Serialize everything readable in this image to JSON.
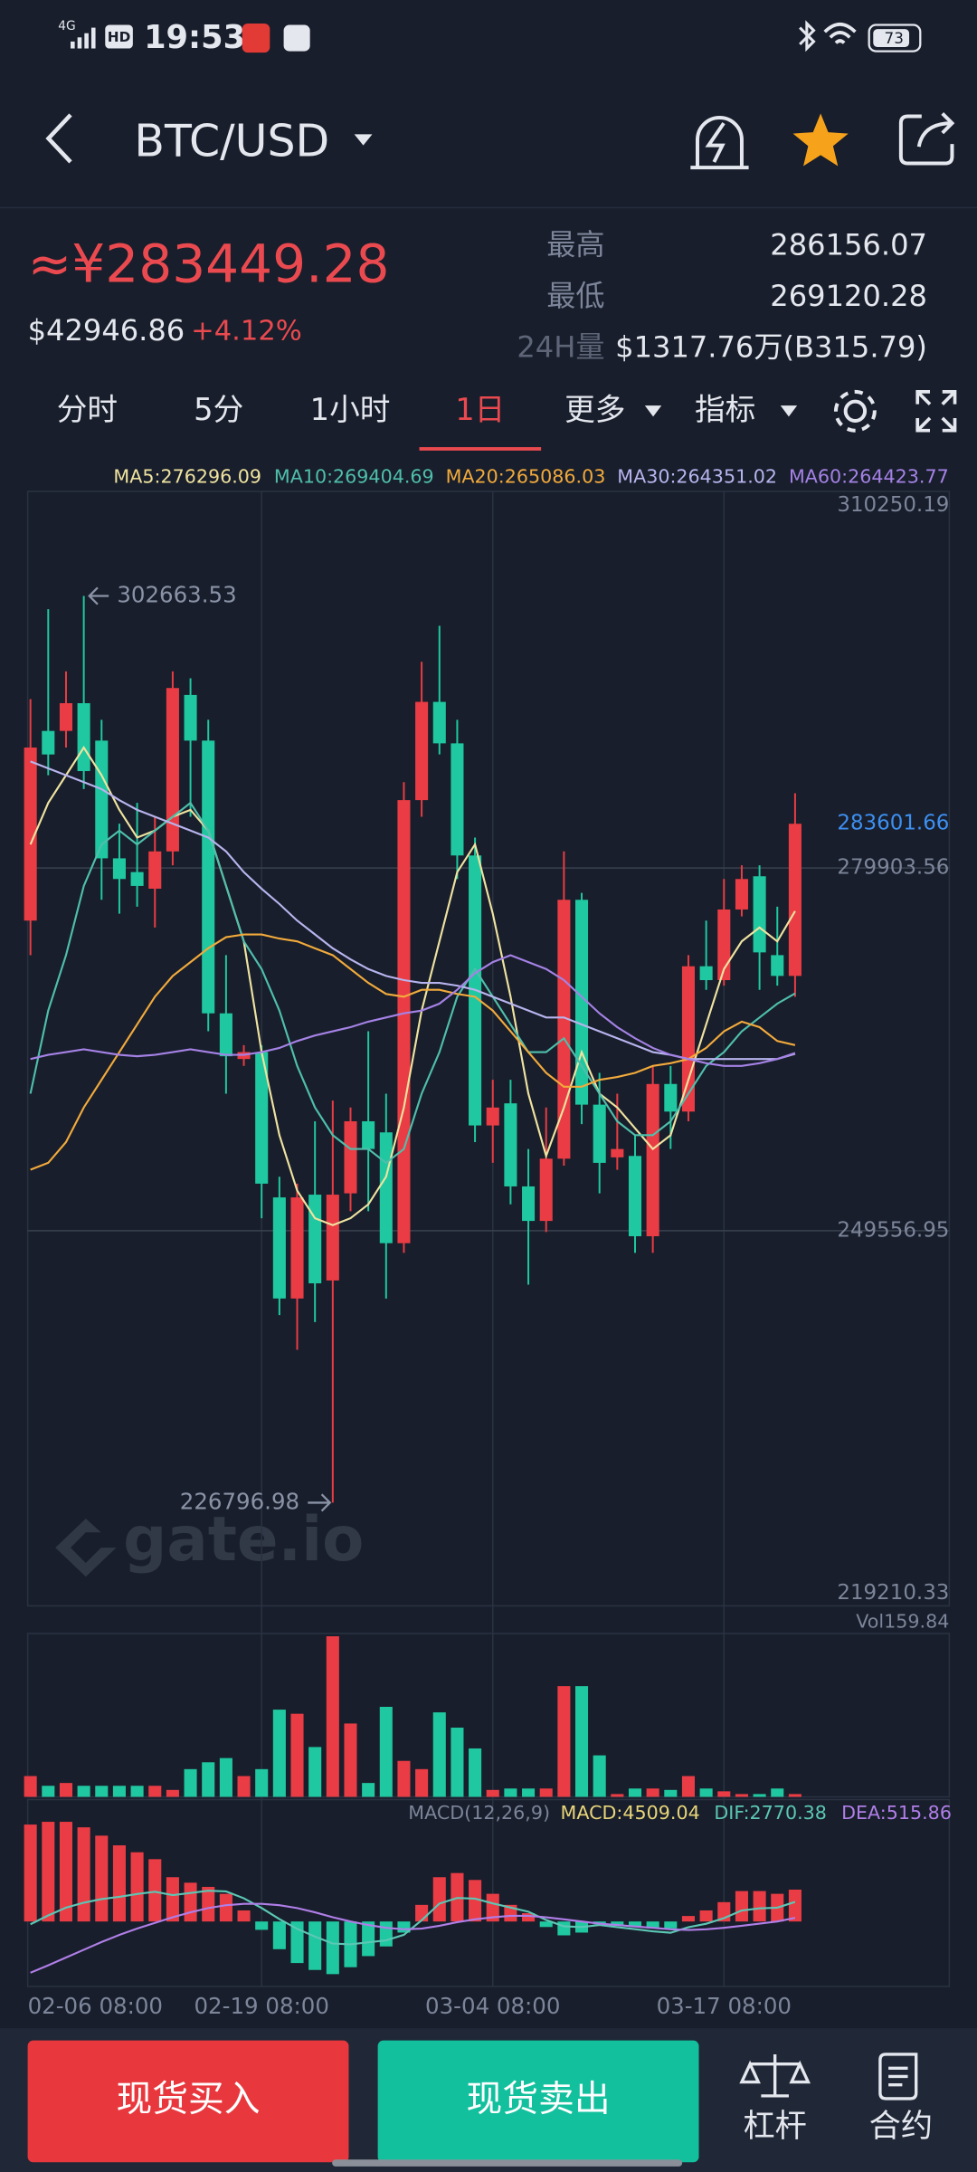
{
  "status_bar": {
    "network": "4G",
    "hd": "HD",
    "time": "19:53",
    "battery": "73"
  },
  "nav": {
    "pair": "BTC/USD"
  },
  "header": {
    "price_cny": "≈¥283449.28",
    "price_usd": "$42946.86",
    "change": "+4.12%",
    "high_label": "最高",
    "high": "286156.07",
    "low_label": "最低",
    "low": "269120.28",
    "volume_label": "24H量",
    "volume": "$1317.76万(B315.79)"
  },
  "tabs": [
    "分时",
    "5分",
    "1小时",
    "1日",
    "更多",
    "指标"
  ],
  "active_tab": "1日",
  "watermark": "gate.io",
  "chart_data": {
    "type": "candlestick",
    "up_color": "#ea3c44",
    "down_color": "#1fc8a0",
    "last_color": "#3d8ff0",
    "categories": [
      "02-06 08:00",
      null,
      null,
      null,
      null,
      null,
      null,
      null,
      null,
      null,
      null,
      null,
      null,
      "02-19 08:00",
      null,
      null,
      null,
      null,
      null,
      null,
      null,
      null,
      null,
      null,
      null,
      null,
      "03-04 08:00",
      null,
      null,
      null,
      null,
      null,
      null,
      null,
      null,
      null,
      null,
      null,
      null,
      "03-17 08:00",
      null,
      null,
      null,
      null
    ],
    "open": [
      275500,
      291370,
      291370,
      293690,
      290560,
      280710,
      279560,
      278170,
      281290,
      294380,
      290560,
      267740,
      263920,
      264500,
      252340,
      243880,
      252570,
      245390,
      252680,
      258710,
      257780,
      248510,
      285580,
      293800,
      290330,
      280950,
      258360,
      260210,
      253260,
      250370,
      255580,
      277240,
      260100,
      255690,
      255810,
      249090,
      261830,
      259520,
      271680,
      270520,
      276430,
      279210,
      272610,
      270870
    ],
    "high": [
      294030,
      301560,
      296350,
      302663.53,
      292300,
      283610,
      285350,
      284190,
      296350,
      295770,
      292300,
      272610,
      265080,
      265080,
      254070,
      253490,
      258710,
      260440,
      259860,
      266240,
      261020,
      287080,
      297160,
      300170,
      292300,
      282450,
      262180,
      262180,
      256390,
      259860,
      281290,
      277820,
      262760,
      261020,
      257550,
      263340,
      263340,
      272610,
      275500,
      278980,
      280130,
      280130,
      276660,
      286156.07
    ],
    "low": [
      272600,
      287660,
      289980,
      286510,
      277240,
      276080,
      276660,
      274920,
      280130,
      284190,
      266240,
      261020,
      263340,
      250600,
      242490,
      239590,
      241910,
      226796.98,
      251180,
      251180,
      243880,
      247700,
      284190,
      289400,
      278980,
      256970,
      255230,
      251760,
      245040,
      249440,
      255000,
      258470,
      252680,
      254650,
      247700,
      247700,
      256390,
      258710,
      269710,
      270060,
      275850,
      269710,
      270060,
      269120.28
    ],
    "close": [
      289980,
      289400,
      293690,
      288010,
      280710,
      278980,
      278400,
      281290,
      294960,
      290560,
      267740,
      264150,
      264500,
      253490,
      243880,
      252340,
      245150,
      252570,
      258710,
      256390,
      248510,
      285580,
      293800,
      290330,
      280950,
      258360,
      259860,
      253260,
      250370,
      255580,
      277240,
      260100,
      255230,
      256390,
      249090,
      261830,
      259520,
      271680,
      270520,
      276430,
      278980,
      272840,
      270870,
      283601.66
    ],
    "ylim": [
      219210.33,
      310250.19
    ],
    "yticks": [
      219210.33,
      249556.95,
      279903.56,
      310250.19
    ],
    "ma_series": [
      {
        "name": "MA5:276296.09",
        "color": "#efe3a0",
        "values": [
          281872,
          285347,
          287663,
          289980,
          287663,
          284767,
          282451,
          283030,
          284188,
          284767,
          283030,
          278397,
          273764,
          264497,
          257547,
          252914,
          250598,
          250018,
          250598,
          251756,
          254072,
          259864,
          267972,
          273764,
          279555,
          281872,
          276080,
          269130,
          261022,
          255810,
          259864,
          264497,
          261022,
          259864,
          258127,
          256389,
          257547,
          262181,
          266814,
          271447,
          273764,
          274922,
          273764,
          276296.09
        ]
      },
      {
        "name": "MA10:269404.69",
        "color": "#4fbfac",
        "values": [
          261022,
          267972,
          272605,
          278397,
          281872,
          283030,
          281872,
          283030,
          284188,
          285347,
          283030,
          278397,
          273764,
          271447,
          267972,
          263339,
          259864,
          257547,
          256389,
          256389,
          255231,
          256389,
          261022,
          264497,
          269130,
          271447,
          269130,
          266814,
          264497,
          264497,
          265655,
          263339,
          261022,
          258706,
          257547,
          257547,
          258706,
          261022,
          263339,
          264497,
          266235,
          267393,
          268551,
          269404.69
        ]
      },
      {
        "name": "MA20:265086.03",
        "color": "#f2aa3c",
        "values": [
          254652,
          255231,
          256968,
          259864,
          262181,
          264497,
          266814,
          269130,
          270868,
          272026,
          273184,
          274111,
          274343,
          274343,
          273995,
          273764,
          273184,
          272605,
          271447,
          270289,
          269362,
          269130,
          269710,
          269710,
          269362,
          269130,
          267972,
          266235,
          264497,
          262760,
          261601,
          261601,
          262181,
          262412,
          262760,
          263339,
          263571,
          263918,
          264845,
          266235,
          267045,
          266582,
          265424,
          265086.03
        ]
      },
      {
        "name": "MA30:264351.02",
        "color": "#b8b4ee",
        "values": [
          288821,
          288242,
          287663,
          287084,
          286505,
          285578,
          284767,
          284188,
          283609,
          283030,
          282451,
          281293,
          279555,
          278165,
          276891,
          275501,
          274343,
          273184,
          272258,
          271447,
          270868,
          270520,
          270289,
          270289,
          270057,
          269710,
          269130,
          268551,
          267972,
          267393,
          267393,
          266814,
          266235,
          265655,
          265076,
          264497,
          264266,
          263918,
          263918,
          263918,
          263918,
          263918,
          263918,
          264351.02
        ]
      },
      {
        "name": "MA60:264423.77",
        "color": "#a582e6",
        "values": [
          263918,
          264266,
          264497,
          264729,
          264497,
          264266,
          264150,
          264266,
          264497,
          264729,
          264497,
          264266,
          264266,
          264497,
          264845,
          265424,
          265887,
          266235,
          266582,
          267045,
          267393,
          267740,
          267972,
          268551,
          269710,
          271100,
          272026,
          272605,
          272026,
          271447,
          270520,
          269130,
          267740,
          266582,
          265655,
          264845,
          264266,
          263918,
          263571,
          263339,
          263339,
          263571,
          263918,
          264423.77
        ]
      }
    ],
    "volume": {
      "values": [
        20.7,
        11,
        13.8,
        11,
        11,
        11,
        11,
        11,
        6.9,
        27.6,
        34.4,
        38.6,
        20.7,
        27.6,
        86.8,
        82.7,
        49.6,
        159.84,
        73,
        13.8,
        89.6,
        35.8,
        27.6,
        84.1,
        68.9,
        48.2,
        6.9,
        8.3,
        8.3,
        8.3,
        110.2,
        110.2,
        41.3,
        2.8,
        8.3,
        8.3,
        6.9,
        20.7,
        8.3,
        5.5,
        2.8,
        2.8,
        8.3,
        2.8
      ],
      "ylim": [
        0,
        159.84
      ],
      "yticks": [
        {
          "value": 159.84,
          "label": "Vol159.84"
        }
      ]
    },
    "macd": {
      "title": "MACD(12,26,9)",
      "ylim": [
        -9200,
        17250
      ],
      "series": [
        {
          "name": "MACD:4509.04",
          "color": "#e9d57a",
          "values": [
            13720,
            14110,
            14110,
            13330,
            12150,
            10780,
            9800,
            8820,
            6270,
            5490,
            4900,
            3920,
            1570,
            -1180,
            -3920,
            -5880,
            -6860,
            -7450,
            -6470,
            -4900,
            -3530,
            -1570,
            2350,
            6270,
            6860,
            5880,
            3920,
            2350,
            1180,
            -780,
            -1960,
            -1570,
            -390,
            -590,
            -780,
            -980,
            -980,
            780,
            1570,
            2740,
            4310,
            4310,
            3920,
            4509.04
          ]
        },
        {
          "name": "DIF:2770.38",
          "color": "#5cc7b5",
          "values": [
            -390,
            855,
            1955,
            2665,
            3175,
            3490,
            3900,
            4210,
            3735,
            4045,
            4350,
            4260,
            3285,
            1910,
            340,
            -1040,
            -2130,
            -3125,
            -3235,
            -2950,
            -2665,
            -1885,
            175,
            2535,
            3330,
            3240,
            2560,
            1975,
            1390,
            210,
            -680,
            -785,
            -495,
            -795,
            -1090,
            -1390,
            -1590,
            -810,
            -315,
            470,
            1555,
            1855,
            1960,
            2770.38
          ]
        },
        {
          "name": "DEA:515.86",
          "color": "#b07ee8",
          "values": [
            -7250,
            -6200,
            -5100,
            -4000,
            -2900,
            -1900,
            -1000,
            -200,
            600,
            1300,
            1900,
            2300,
            2500,
            2500,
            2300,
            1900,
            1300,
            600,
            0,
            -500,
            -900,
            -1100,
            -1000,
            -600,
            -100,
            300,
            600,
            800,
            800,
            600,
            300,
            0,
            -300,
            -500,
            -700,
            -900,
            -1100,
            -1200,
            -1100,
            -900,
            -600,
            -300,
            0,
            515.86
          ]
        }
      ]
    }
  },
  "buttons": {
    "buy": "现货买入",
    "sell": "现货卖出",
    "margin": "杠杆",
    "contract": "合约"
  }
}
